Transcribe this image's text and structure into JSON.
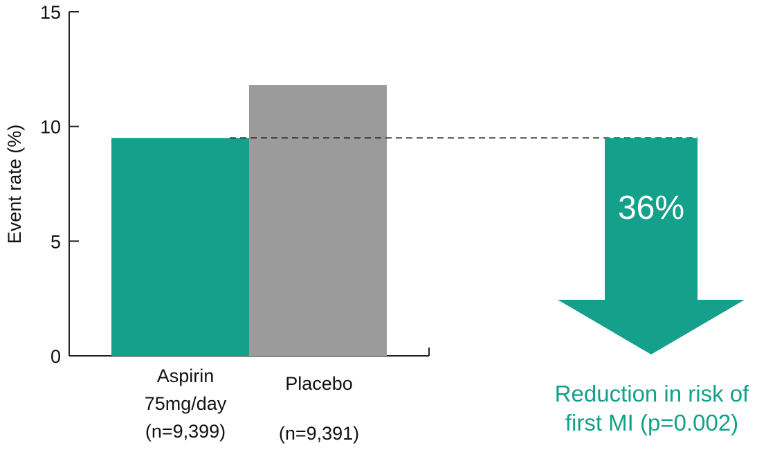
{
  "chart_data": {
    "type": "bar",
    "ylabel": "Event rate (%)",
    "ylim": [
      0,
      15
    ],
    "yticks": [
      0,
      5,
      10,
      15
    ],
    "grid": false,
    "categories": [
      {
        "lines": [
          "Aspirin",
          "75mg/day",
          "(n=9,399)"
        ],
        "value": 9.5,
        "color": "#14a08a"
      },
      {
        "lines": [
          "Placebo",
          "",
          "(n=9,391)"
        ],
        "value": 11.8,
        "color": "#9b9b9b"
      }
    ],
    "reference_line": {
      "value": 9.5,
      "style": "dashed"
    },
    "annotation": {
      "value_label": "36%",
      "caption_lines": [
        "Reduction in risk of",
        "first MI (p=0.002)"
      ],
      "color": "#14a08a",
      "shape": "down-arrow"
    }
  }
}
